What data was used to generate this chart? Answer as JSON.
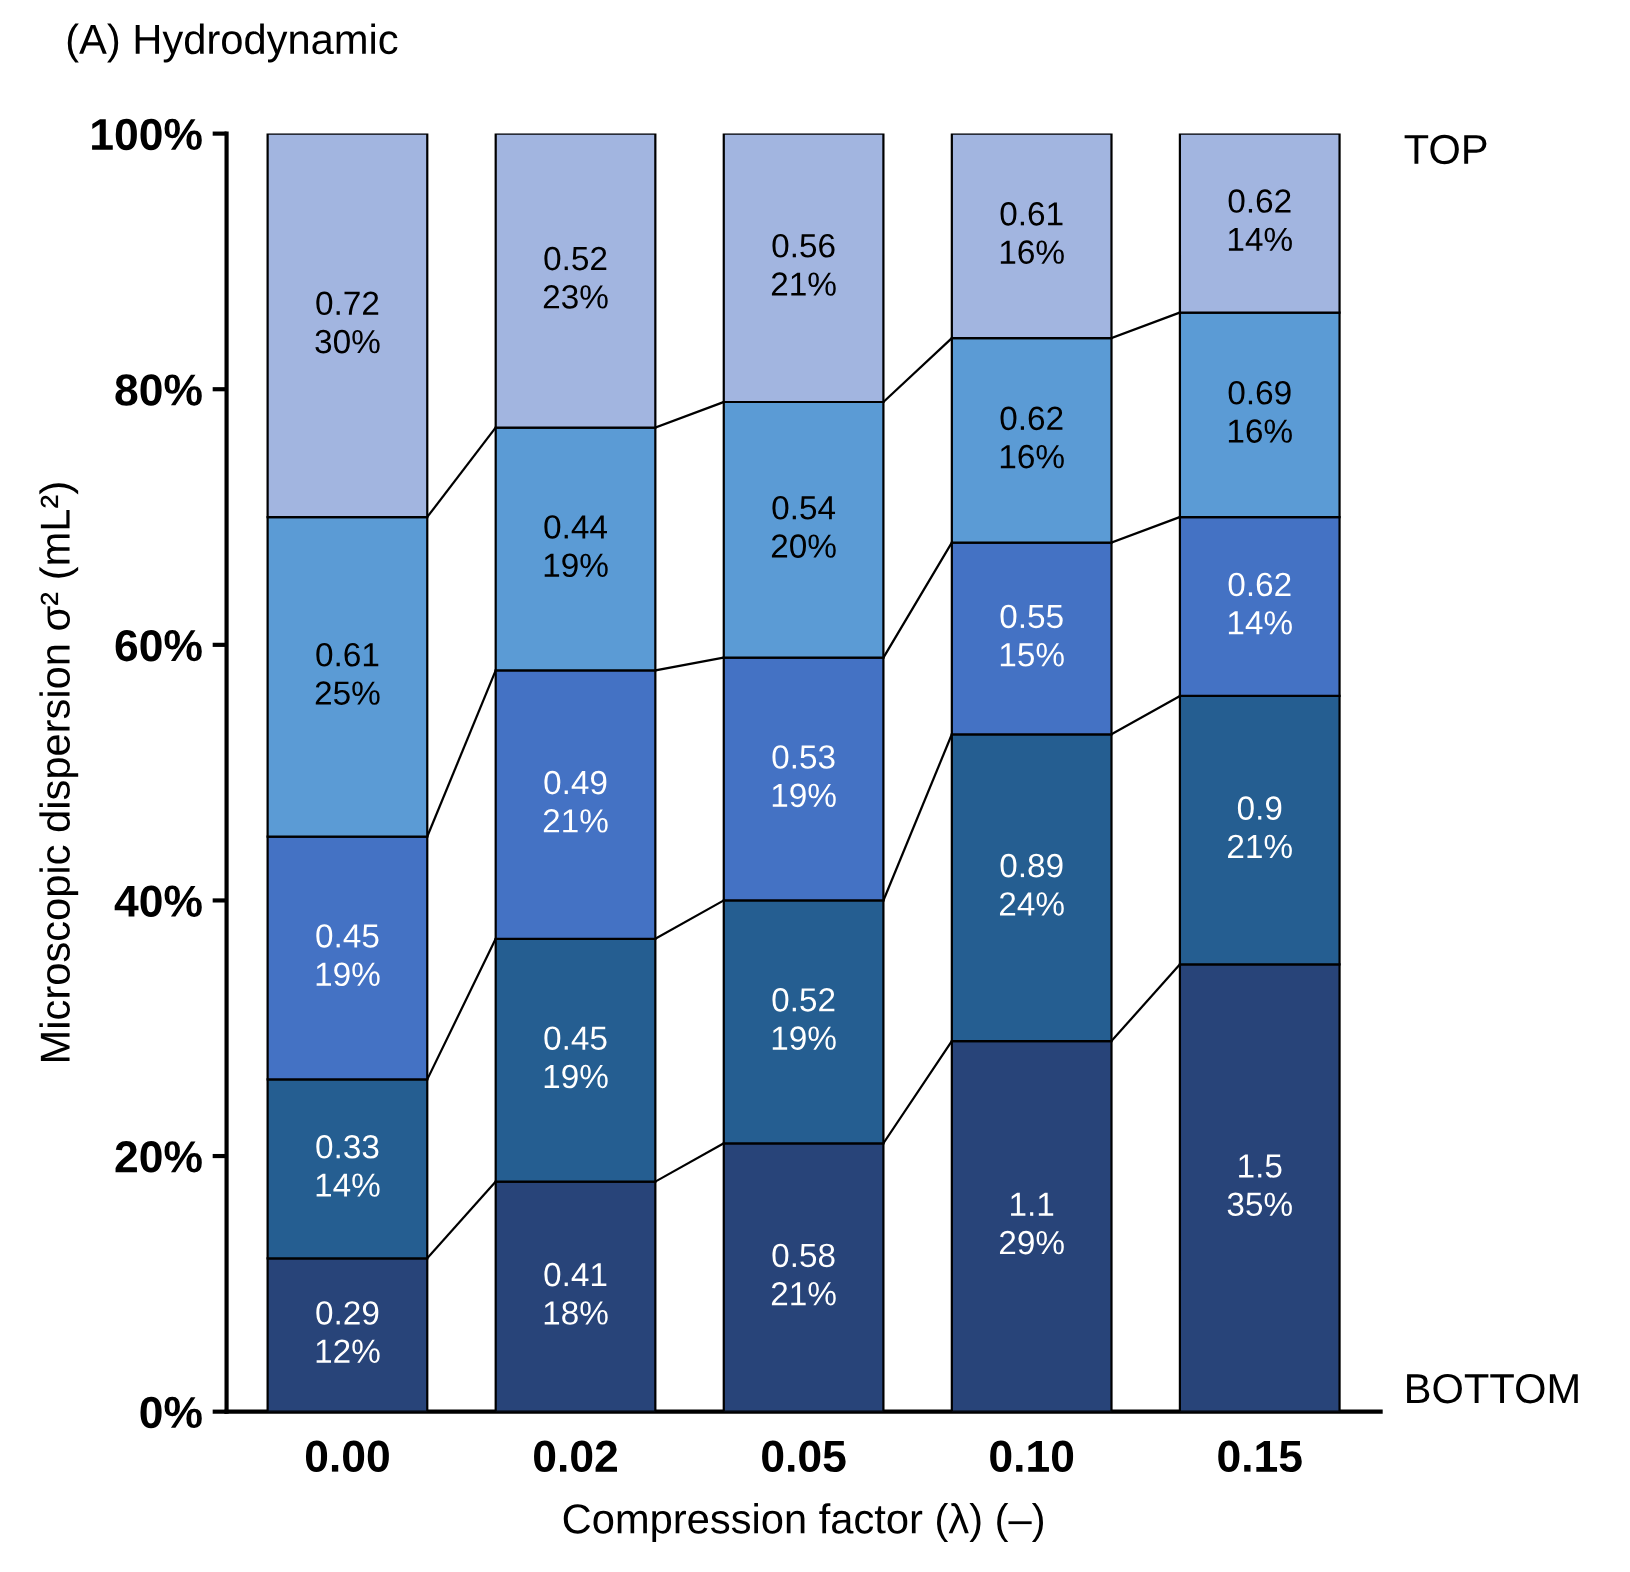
{
  "chart_data": {
    "type": "bar",
    "stacked": true,
    "title": "(A) Hydrodynamic",
    "xlabel": "Compression factor (λ) (–)",
    "ylabel": "Microscopic dispersion σ² (mL²)",
    "categories": [
      "0.00",
      "0.02",
      "0.05",
      "0.10",
      "0.15"
    ],
    "series": [
      {
        "color": "#284479",
        "values": [
          12,
          18,
          21,
          29,
          35
        ],
        "value_labels": [
          "0.29\n12%",
          "0.41\n18%",
          "0.58\n21%",
          "1.1\n29%",
          "1.5\n35%"
        ]
      },
      {
        "color": "#255e91",
        "values": [
          14,
          19,
          19,
          24,
          21
        ],
        "value_labels": [
          "0.33\n14%",
          "0.45\n19%",
          "0.52\n19%",
          "0.89\n24%",
          "0.9\n21%"
        ]
      },
      {
        "color": "#4472c4",
        "values": [
          19,
          21,
          19,
          15,
          14
        ],
        "value_labels": [
          "0.45\n19%",
          "0.49\n21%",
          "0.53\n19%",
          "0.55\n15%",
          "0.62\n14%"
        ]
      },
      {
        "color": "#5b9bd5",
        "values": [
          25,
          19,
          20,
          16,
          16
        ],
        "value_labels": [
          "0.61\n25%",
          "0.44\n19%",
          "0.54\n20%",
          "0.62\n16%",
          "0.69\n16%"
        ]
      },
      {
        "color": "#a2b5e0",
        "values": [
          30,
          23,
          21,
          16,
          14
        ],
        "value_labels": [
          "0.72\n30%",
          "0.52\n23%",
          "0.56\n21%",
          "0.61\n16%",
          "0.62\n14%"
        ]
      }
    ],
    "ylim": [
      0,
      100
    ],
    "yticks": [
      {
        "value": 0,
        "label": "0%"
      },
      {
        "value": 20,
        "label": "20%"
      },
      {
        "value": 40,
        "label": "40%"
      },
      {
        "value": 60,
        "label": "60%"
      },
      {
        "value": 80,
        "label": "80%"
      },
      {
        "value": 100,
        "label": "100%"
      }
    ],
    "annotations": [
      "TOP",
      "BOTTOM"
    ],
    "grid": false,
    "legend": false
  }
}
